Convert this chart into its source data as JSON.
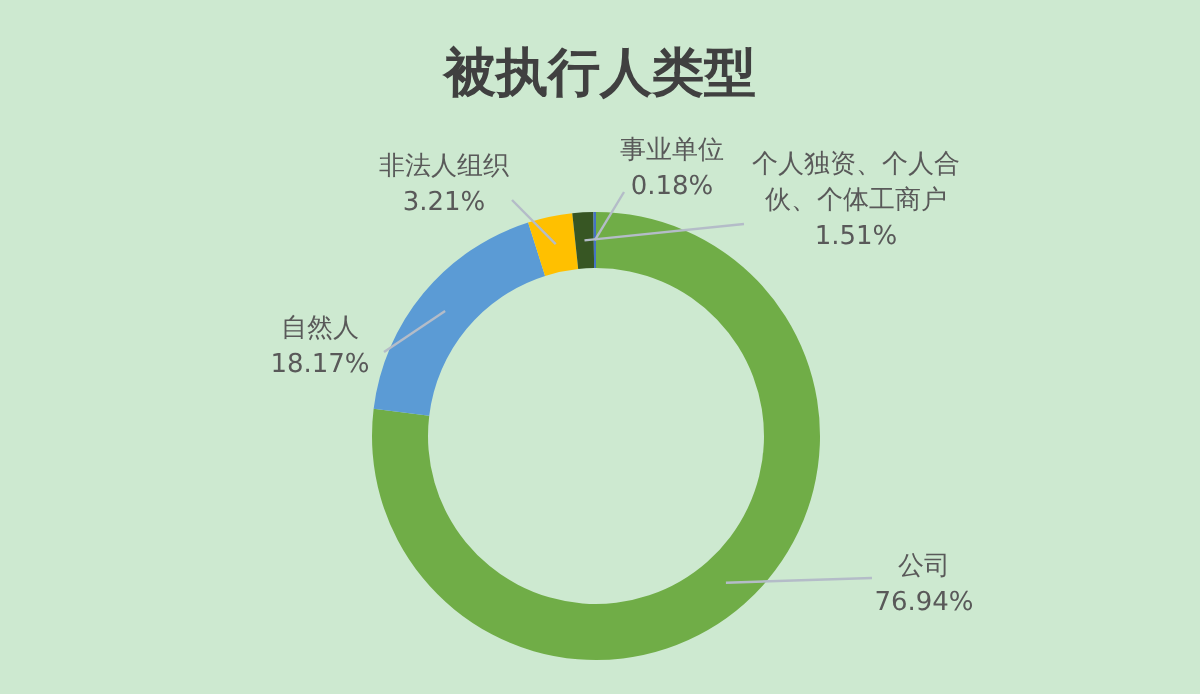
{
  "chart_data": {
    "type": "donut",
    "title": "被执行人类型",
    "categories": [
      "公司",
      "自然人",
      "非法人组织",
      "个人独资、个人合伙、个体工商户",
      "事业单位"
    ],
    "values": [
      76.94,
      18.17,
      3.21,
      1.51,
      0.18
    ],
    "value_labels": [
      "76.94%",
      "18.17%",
      "3.21%",
      "1.51%",
      "0.18%"
    ],
    "colors": [
      "#70ad47",
      "#5b9bd5",
      "#ffc000",
      "#375623",
      "#4472c4"
    ],
    "legend": false
  }
}
